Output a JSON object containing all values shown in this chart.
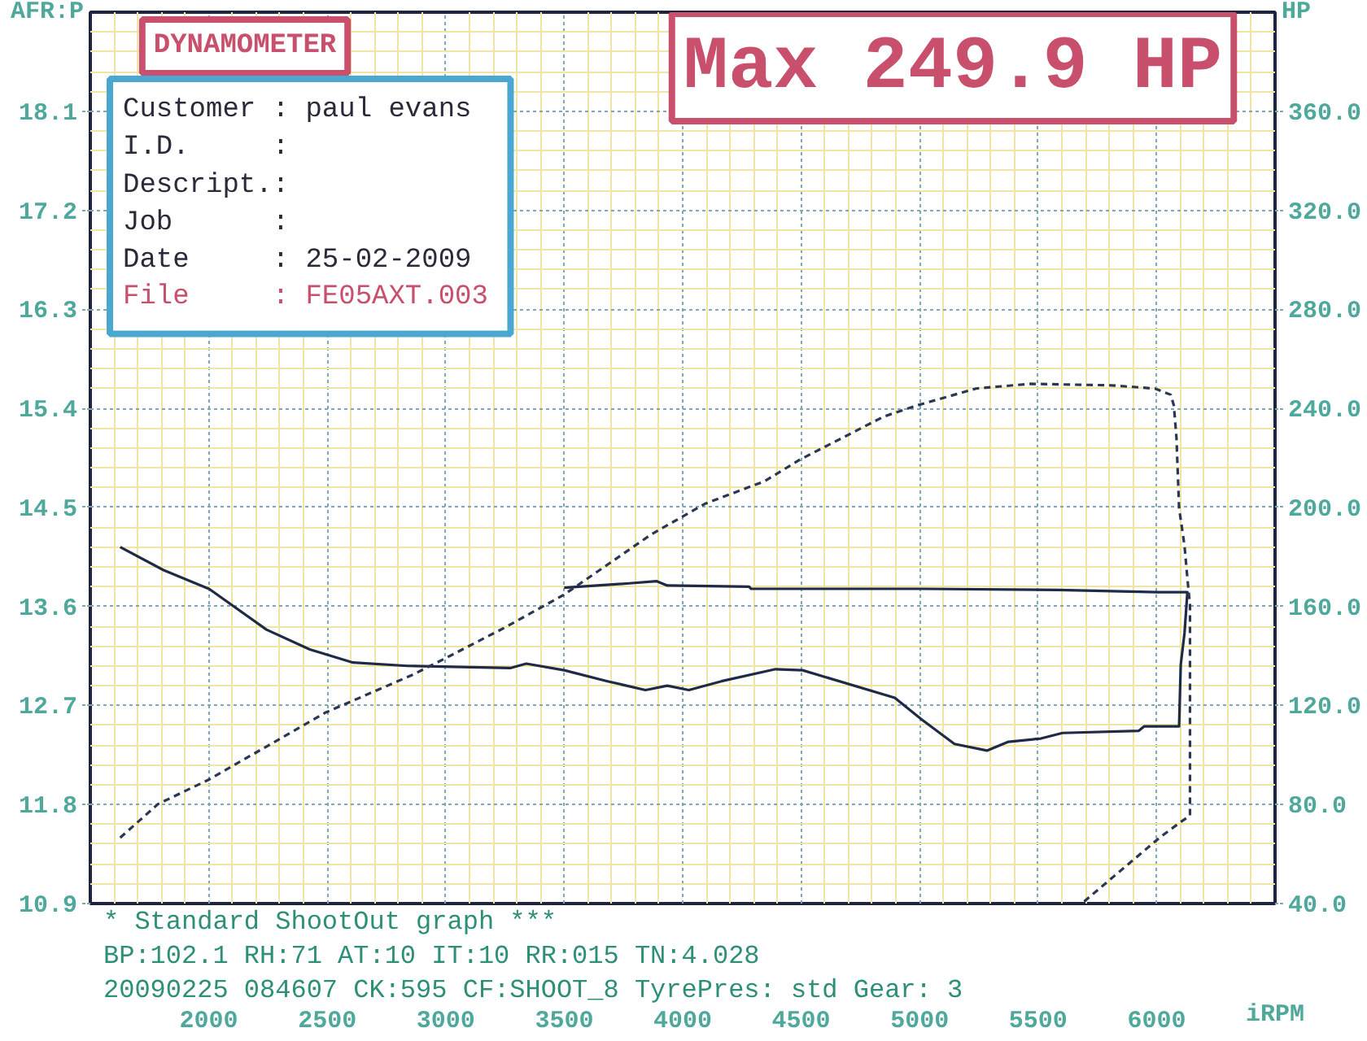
{
  "chart_data": {
    "type": "line",
    "title": "DYNAMOMETER",
    "subtitle": "Max 249.9 HP",
    "xlabel": "iRPM",
    "ylabel": "AFR:P",
    "y2label": "HP",
    "xlim": [
      1500,
      6500
    ],
    "xticks": [
      {
        "value": 1600,
        "label": null
      },
      {
        "value": 1700,
        "label": null
      },
      {
        "value": 1800,
        "label": null
      },
      {
        "value": 1900,
        "label": null
      },
      2000,
      {
        "value": 2100,
        "label": null
      },
      {
        "value": 2200,
        "label": null
      },
      {
        "value": 2300,
        "label": null
      },
      {
        "value": 2400,
        "label": null
      },
      2500,
      {
        "value": 2600,
        "label": null
      },
      {
        "value": 2700,
        "label": null
      },
      {
        "value": 2800,
        "label": null
      },
      {
        "value": 2900,
        "label": null
      },
      3000,
      {
        "value": 3100,
        "label": null
      },
      {
        "value": 3200,
        "label": null
      },
      {
        "value": 3300,
        "label": null
      },
      {
        "value": 3400,
        "label": null
      },
      3500,
      {
        "value": 3600,
        "label": null
      },
      {
        "value": 3700,
        "label": null
      },
      {
        "value": 3800,
        "label": null
      },
      {
        "value": 3900,
        "label": null
      },
      4000,
      {
        "value": 4100,
        "label": null
      },
      {
        "value": 4200,
        "label": null
      },
      {
        "value": 4300,
        "label": null
      },
      {
        "value": 4400,
        "label": null
      },
      4500,
      {
        "value": 4600,
        "label": null
      },
      {
        "value": 4700,
        "label": null
      },
      {
        "value": 4800,
        "label": null
      },
      {
        "value": 4900,
        "label": null
      },
      5000,
      {
        "value": 5100,
        "label": null
      },
      {
        "value": 5200,
        "label": null
      },
      {
        "value": 5300,
        "label": null
      },
      {
        "value": 5400,
        "label": null
      },
      5500,
      {
        "value": 5600,
        "label": null
      },
      {
        "value": 5700,
        "label": null
      },
      {
        "value": 5800,
        "label": null
      },
      {
        "value": 5900,
        "label": null
      },
      6000,
      {
        "value": 6100,
        "label": null
      },
      {
        "value": 6200,
        "label": null
      },
      {
        "value": 6300,
        "label": null
      },
      {
        "value": 6400,
        "label": null
      }
    ],
    "ylim": [
      10.9,
      19.0
    ],
    "yticks": [
      10.9,
      {
        "value": 11.08,
        "label": null
      },
      {
        "value": 11.26,
        "label": null
      },
      {
        "value": 11.44,
        "label": null
      },
      {
        "value": 11.62,
        "label": null
      },
      11.8,
      {
        "value": 11.98,
        "label": null
      },
      {
        "value": 12.16,
        "label": null
      },
      {
        "value": 12.34,
        "label": null
      },
      {
        "value": 12.52,
        "label": null
      },
      12.7,
      {
        "value": 12.88,
        "label": null
      },
      {
        "value": 13.06,
        "label": null
      },
      {
        "value": 13.24,
        "label": null
      },
      {
        "value": 13.42,
        "label": null
      },
      13.6,
      {
        "value": 13.78,
        "label": null
      },
      {
        "value": 13.96,
        "label": null
      },
      {
        "value": 14.14,
        "label": null
      },
      {
        "value": 14.32,
        "label": null
      },
      14.5,
      {
        "value": 14.68,
        "label": null
      },
      {
        "value": 14.86,
        "label": null
      },
      {
        "value": 15.04,
        "label": null
      },
      {
        "value": 15.22,
        "label": null
      },
      15.4,
      {
        "value": 15.58,
        "label": null
      },
      {
        "value": 15.76,
        "label": null
      },
      {
        "value": 15.94,
        "label": null
      },
      {
        "value": 16.12,
        "label": null
      },
      16.3,
      {
        "value": 16.48,
        "label": null
      },
      {
        "value": 16.66,
        "label": null
      },
      {
        "value": 16.84,
        "label": null
      },
      {
        "value": 17.02,
        "label": null
      },
      17.2,
      {
        "value": 17.38,
        "label": null
      },
      {
        "value": 17.56,
        "label": null
      },
      {
        "value": 17.74,
        "label": null
      },
      {
        "value": 17.92,
        "label": null
      },
      18.1,
      {
        "value": 18.28,
        "label": null
      },
      {
        "value": 18.46,
        "label": null
      },
      {
        "value": 18.64,
        "label": null
      },
      {
        "value": 18.82,
        "label": null
      }
    ],
    "y2lim": [
      40,
      400
    ],
    "y2ticks": [
      {
        "value": 40,
        "label": "40.0"
      },
      {
        "value": 80,
        "label": "80.0"
      },
      {
        "value": 120,
        "label": "120.0"
      },
      {
        "value": 160,
        "label": "160.0"
      },
      {
        "value": 200,
        "label": "200.0"
      },
      {
        "value": 240,
        "label": "240.0"
      },
      {
        "value": 280,
        "label": "280.0"
      },
      {
        "value": 320,
        "label": "320.0"
      },
      {
        "value": 360,
        "label": "360.0"
      }
    ],
    "grid": true,
    "annotations": [
      "Customer : paul evans",
      "I.D. :",
      "Descript.:",
      "Job :",
      "Date : 25-02-2009",
      "File : FE05AXT.003",
      "* Standard ShootOut graph ***",
      "BP:102.1 RH:71 AT:10 IT:10 RR:015 TN:4.028",
      "20090225 084607 CK:595 CF:SHOOT_8 TyrePres: std Gear: 3"
    ],
    "series": [
      {
        "color": "#1e2a46",
        "line_style": "solid",
        "x": [
          1626,
          1809,
          2001,
          2243,
          2426,
          2609,
          2837,
          3272,
          3340,
          3500,
          3683,
          3843,
          3935,
          4026,
          4163,
          4392,
          4506,
          4895,
          5010,
          5147,
          5284,
          5375,
          5512,
          5603,
          5925,
          5947,
          6095,
          6102,
          6118,
          6130,
          6004,
          5583,
          5010,
          4289,
          4280,
          3935,
          3889,
          3775,
          3500
        ],
        "values": [
          14.14,
          13.93,
          13.76,
          13.39,
          13.21,
          13.09,
          13.06,
          13.04,
          13.08,
          13.02,
          12.92,
          12.84,
          12.88,
          12.84,
          12.92,
          13.03,
          13.02,
          12.77,
          12.57,
          12.35,
          12.29,
          12.37,
          12.4,
          12.45,
          12.47,
          12.51,
          12.51,
          13.07,
          13.36,
          13.73,
          13.73,
          13.75,
          13.76,
          13.76,
          13.78,
          13.79,
          13.83,
          13.81,
          13.77
        ]
      },
      {
        "color": "#2a3652",
        "line_style": "dashed",
        "axis": "y2",
        "x": [
          1626,
          1786,
          2001,
          2494,
          2860,
          2997,
          3250,
          3500,
          3866,
          3981,
          4095,
          4346,
          4495,
          4849,
          4986,
          5238,
          5466,
          5809,
          5993,
          6060,
          6073,
          6084,
          6095,
          6118,
          6130,
          6141,
          6141,
          6107,
          6015,
          5684
        ],
        "values": [
          66.6,
          80.2,
          90.1,
          117.2,
          132.4,
          139.0,
          151.5,
          164.8,
          189,
          195.3,
          201.5,
          210.6,
          219.3,
          236.7,
          241.1,
          248.0,
          249.9,
          249.3,
          248.0,
          245.5,
          241.1,
          228.0,
          199.7,
          184.4,
          171.4,
          160.5,
          75.5,
          73.3,
          66.8,
          40.0
        ]
      }
    ]
  }
}
